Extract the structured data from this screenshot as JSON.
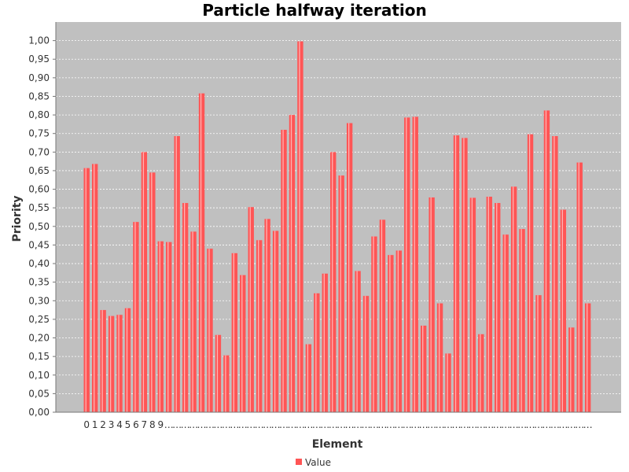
{
  "chart_data": {
    "type": "bar",
    "title": "Particle halfway iteration",
    "xlabel": "Element",
    "ylabel": "Priority",
    "ylim": [
      0,
      1.05
    ],
    "y_ticks": [
      "0,00",
      "0,05",
      "0,10",
      "0,15",
      "0,20",
      "0,25",
      "0,30",
      "0,35",
      "0,40",
      "0,45",
      "0,50",
      "0,55",
      "0,60",
      "0,65",
      "0,70",
      "0,75",
      "0,80",
      "0,85",
      "0,90",
      "0,95",
      "1,00"
    ],
    "x_tick_labels_visible": [
      "0",
      "1",
      "2",
      "3",
      "4",
      "5",
      "6",
      "7",
      "8",
      "9"
    ],
    "x_tick_labels_truncated": "…",
    "grid": true,
    "legend_position": "bottom",
    "colors": {
      "bar": "#ff5555",
      "plot_bg": "#c0c0c0",
      "grid": "#ffffff"
    },
    "series": [
      {
        "name": "Value",
        "values": [
          0.657,
          0.668,
          0.275,
          0.259,
          0.262,
          0.28,
          0.512,
          0.7,
          0.645,
          0.46,
          0.458,
          0.743,
          0.563,
          0.486,
          0.858,
          0.44,
          0.208,
          0.153,
          0.428,
          0.369,
          0.552,
          0.463,
          0.52,
          0.488,
          0.76,
          0.8,
          0.998,
          0.183,
          0.32,
          0.373,
          0.7,
          0.637,
          0.778,
          0.38,
          0.313,
          0.473,
          0.518,
          0.423,
          0.435,
          0.793,
          0.795,
          0.233,
          0.578,
          0.293,
          0.158,
          0.745,
          0.738,
          0.577,
          0.21,
          0.58,
          0.563,
          0.478,
          0.607,
          0.493,
          0.748,
          0.315,
          0.812,
          0.743,
          0.545,
          0.228,
          0.672,
          0.293
        ]
      }
    ]
  }
}
